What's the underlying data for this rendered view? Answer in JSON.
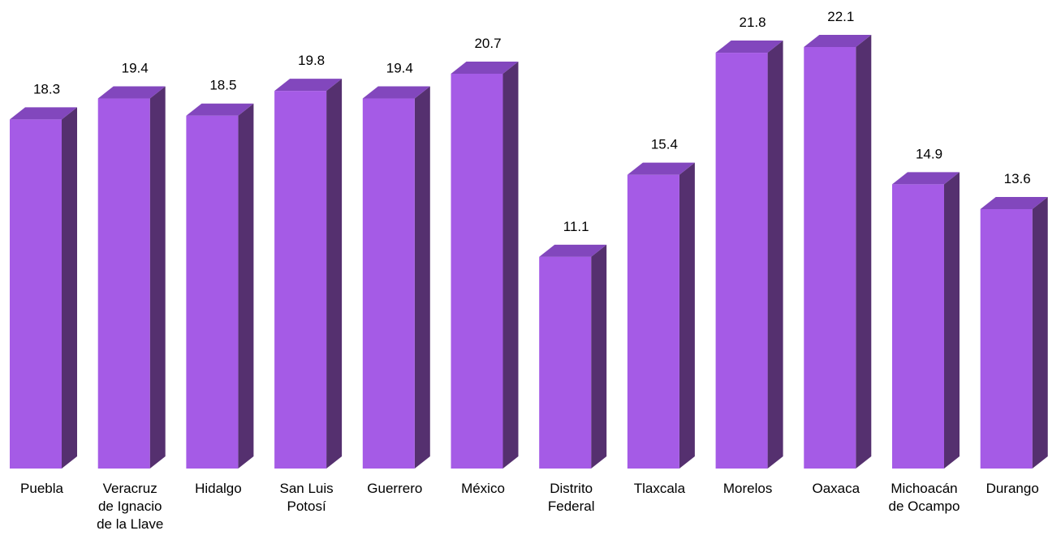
{
  "chart_data": {
    "type": "bar",
    "title": "",
    "xlabel": "",
    "ylabel": "",
    "ylim": [
      0,
      22.1
    ],
    "grid": false,
    "legend": "none",
    "bar_style": "3d",
    "colors": {
      "front": "#a55be6",
      "top": "#8247bd",
      "side": "#55306f"
    },
    "categories": [
      [
        "Puebla"
      ],
      [
        "Veracruz",
        "de Ignacio",
        "de la Llave"
      ],
      [
        "Hidalgo"
      ],
      [
        "San Luis",
        "Potosí"
      ],
      [
        "Guerrero"
      ],
      [
        "México"
      ],
      [
        "Distrito",
        "Federal"
      ],
      [
        "Tlaxcala"
      ],
      [
        "Morelos"
      ],
      [
        "Oaxaca"
      ],
      [
        "Michoacán",
        "de Ocampo"
      ],
      [
        "Durango"
      ]
    ],
    "values": [
      18.3,
      19.4,
      18.5,
      19.8,
      19.4,
      20.7,
      11.1,
      15.4,
      21.8,
      22.1,
      14.9,
      13.6
    ],
    "value_labels": [
      "18.3",
      "19.4",
      "18.5",
      "19.8",
      "19.4",
      "20.7",
      "11.1",
      "15.4",
      "21.8",
      "22.1",
      "14.9",
      "13.6"
    ]
  }
}
